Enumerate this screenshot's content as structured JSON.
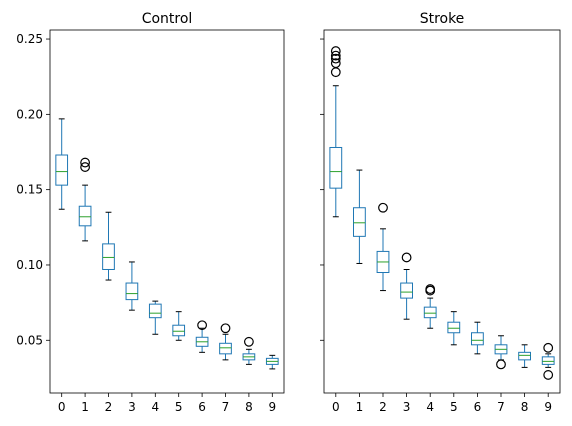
{
  "chart_data": [
    {
      "type": "box",
      "title": "Control",
      "categories": [
        "0",
        "1",
        "2",
        "3",
        "4",
        "5",
        "6",
        "7",
        "8",
        "9"
      ],
      "y_ticks": [
        "0.05",
        "0.10",
        "0.15",
        "0.20",
        "0.25"
      ],
      "ylim": [
        0.015,
        0.256
      ],
      "grid": false,
      "boxes": [
        {
          "whislo": 0.137,
          "q1": 0.153,
          "med": 0.162,
          "q3": 0.173,
          "whishi": 0.197,
          "fliers": []
        },
        {
          "whislo": 0.116,
          "q1": 0.126,
          "med": 0.132,
          "q3": 0.139,
          "whishi": 0.153,
          "fliers": [
            0.165,
            0.168
          ]
        },
        {
          "whislo": 0.09,
          "q1": 0.097,
          "med": 0.105,
          "q3": 0.114,
          "whishi": 0.135,
          "fliers": []
        },
        {
          "whislo": 0.07,
          "q1": 0.077,
          "med": 0.081,
          "q3": 0.088,
          "whishi": 0.102,
          "fliers": []
        },
        {
          "whislo": 0.054,
          "q1": 0.065,
          "med": 0.068,
          "q3": 0.074,
          "whishi": 0.076,
          "fliers": []
        },
        {
          "whislo": 0.05,
          "q1": 0.053,
          "med": 0.056,
          "q3": 0.06,
          "whishi": 0.069,
          "fliers": []
        },
        {
          "whislo": 0.042,
          "q1": 0.046,
          "med": 0.049,
          "q3": 0.052,
          "whishi": 0.058,
          "fliers": [
            0.06
          ]
        },
        {
          "whislo": 0.037,
          "q1": 0.041,
          "med": 0.045,
          "q3": 0.048,
          "whishi": 0.054,
          "fliers": [
            0.058
          ]
        },
        {
          "whislo": 0.034,
          "q1": 0.037,
          "med": 0.039,
          "q3": 0.041,
          "whishi": 0.044,
          "fliers": [
            0.049
          ]
        },
        {
          "whislo": 0.031,
          "q1": 0.034,
          "med": 0.036,
          "q3": 0.038,
          "whishi": 0.04,
          "fliers": []
        }
      ]
    },
    {
      "type": "box",
      "title": "Stroke",
      "categories": [
        "0",
        "1",
        "2",
        "3",
        "4",
        "5",
        "6",
        "7",
        "8",
        "9"
      ],
      "ylim": [
        0.015,
        0.256
      ],
      "grid": false,
      "boxes": [
        {
          "whislo": 0.132,
          "q1": 0.151,
          "med": 0.162,
          "q3": 0.178,
          "whishi": 0.219,
          "fliers": [
            0.228,
            0.234,
            0.237,
            0.239,
            0.242
          ]
        },
        {
          "whislo": 0.101,
          "q1": 0.119,
          "med": 0.128,
          "q3": 0.138,
          "whishi": 0.163,
          "fliers": []
        },
        {
          "whislo": 0.083,
          "q1": 0.095,
          "med": 0.102,
          "q3": 0.109,
          "whishi": 0.124,
          "fliers": [
            0.138
          ]
        },
        {
          "whislo": 0.064,
          "q1": 0.078,
          "med": 0.082,
          "q3": 0.088,
          "whishi": 0.097,
          "fliers": [
            0.105
          ]
        },
        {
          "whislo": 0.058,
          "q1": 0.065,
          "med": 0.068,
          "q3": 0.072,
          "whishi": 0.078,
          "fliers": [
            0.083,
            0.084
          ]
        },
        {
          "whislo": 0.047,
          "q1": 0.055,
          "med": 0.058,
          "q3": 0.062,
          "whishi": 0.069,
          "fliers": []
        },
        {
          "whislo": 0.041,
          "q1": 0.047,
          "med": 0.05,
          "q3": 0.055,
          "whishi": 0.062,
          "fliers": []
        },
        {
          "whislo": 0.037,
          "q1": 0.041,
          "med": 0.044,
          "q3": 0.047,
          "whishi": 0.053,
          "fliers": [
            0.034
          ]
        },
        {
          "whislo": 0.032,
          "q1": 0.037,
          "med": 0.04,
          "q3": 0.042,
          "whishi": 0.047,
          "fliers": []
        },
        {
          "whislo": 0.032,
          "q1": 0.034,
          "med": 0.036,
          "q3": 0.039,
          "whishi": 0.041,
          "fliers": [
            0.027,
            0.045
          ]
        }
      ]
    }
  ],
  "colors": {
    "box": "#1f77b4",
    "median": "#2ca02c",
    "whisker": "#000000",
    "flier": "#000000"
  }
}
